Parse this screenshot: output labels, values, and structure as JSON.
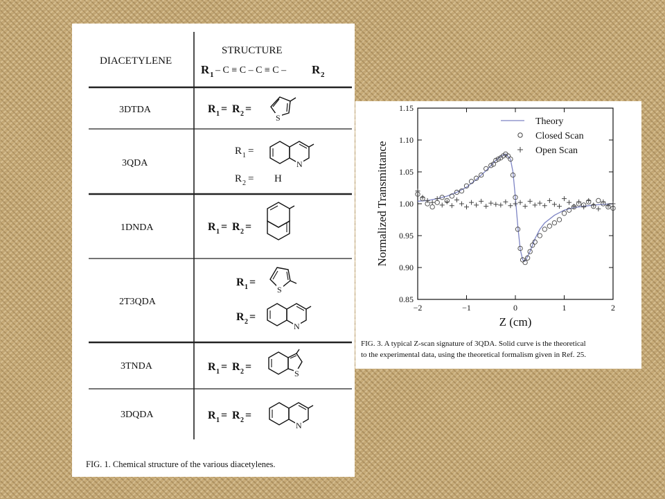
{
  "fig1": {
    "header_left": "DIACETYLENE",
    "header_right": "STRUCTURE",
    "formula": {
      "r1": "R",
      "r1_sub": "1",
      "mid": "– C ≡ C – C ≡ C –",
      "r2": "R",
      "r2_sub": "2"
    },
    "rows": [
      {
        "name": "3DTDA",
        "lines": [
          {
            "label": "R",
            "sub": "1",
            "eq": "= ",
            "label2": "R",
            "sub2": "2",
            "eq2": "=",
            "group": "thiophene-3-yl",
            "value": ""
          }
        ]
      },
      {
        "name": "3QDA",
        "lines": [
          {
            "label": "R",
            "sub": "1",
            "eq": "=",
            "group": "quinolin-3-yl",
            "value": ""
          },
          {
            "label": "R",
            "sub": "2",
            "eq": "=",
            "group": "",
            "value": "H"
          }
        ]
      },
      {
        "name": "1DNDA",
        "lines": [
          {
            "label": "R",
            "sub": "1",
            "eq": "= ",
            "label2": "R",
            "sub2": "2",
            "eq2": "=",
            "group": "naphthalen-1-yl",
            "value": ""
          }
        ]
      },
      {
        "name": "2T3QDA",
        "lines": [
          {
            "label": "R",
            "sub": "1",
            "eq": "=",
            "group": "thiophen-2-yl",
            "value": ""
          },
          {
            "label": "R",
            "sub": "2",
            "eq": "=",
            "group": "quinolin-3-yl",
            "value": ""
          }
        ]
      },
      {
        "name": "3TNDA",
        "lines": [
          {
            "label": "R",
            "sub": "1",
            "eq": "= ",
            "label2": "R",
            "sub2": "2",
            "eq2": "=",
            "group": "benzothiophen-3-yl",
            "value": ""
          }
        ]
      },
      {
        "name": "3DQDA",
        "lines": [
          {
            "label": "R",
            "sub": "1",
            "eq": "= ",
            "label2": "R",
            "sub2": "2",
            "eq2": "=",
            "group": "quinolin-3-yl",
            "value": ""
          }
        ]
      }
    ],
    "atoms": {
      "S": "S",
      "N": "N"
    },
    "caption": "FIG. 1. Chemical structure of the various diacetylenes."
  },
  "fig3": {
    "caption_line1": "FIG. 3. A typical Z-scan signature of 3QDA. Solid curve is the theoretical",
    "caption_line2": "to the experimental data, using the theoretical formalism given in Ref. 25."
  },
  "chart_data": {
    "type": "scatter",
    "title": "",
    "xlabel": "Z (cm)",
    "ylabel": "Normalized Transmittance",
    "xlim": [
      -2,
      2
    ],
    "ylim": [
      0.85,
      1.15
    ],
    "xticks": [
      -2,
      -1,
      0,
      1,
      2
    ],
    "xtick_labels": [
      "−2",
      "−1",
      "0",
      "1",
      "2"
    ],
    "yticks": [
      0.85,
      0.9,
      0.95,
      1.0,
      1.05,
      1.1,
      1.15
    ],
    "ytick_labels": [
      "0.85",
      "0.90",
      "0.95",
      "1.00",
      "1.05",
      "1.10",
      "1.15"
    ],
    "grid": false,
    "legend_position": "top-right",
    "series": [
      {
        "name": "Theory",
        "marker": "line",
        "color": "#7d84c4",
        "x": [
          -2.0,
          -1.8,
          -1.6,
          -1.4,
          -1.2,
          -1.0,
          -0.8,
          -0.6,
          -0.5,
          -0.4,
          -0.3,
          -0.2,
          -0.1,
          -0.05,
          0.0,
          0.05,
          0.1,
          0.15,
          0.2,
          0.3,
          0.4,
          0.5,
          0.6,
          0.8,
          1.0,
          1.2,
          1.4,
          1.6,
          1.8,
          2.0
        ],
        "y": [
          1.004,
          1.005,
          1.008,
          1.012,
          1.018,
          1.026,
          1.038,
          1.052,
          1.06,
          1.068,
          1.074,
          1.078,
          1.07,
          1.05,
          1.01,
          0.965,
          0.928,
          0.912,
          0.91,
          0.925,
          0.945,
          0.96,
          0.97,
          0.982,
          0.99,
          0.994,
          0.996,
          0.998,
          0.999,
          1.0
        ]
      },
      {
        "name": "Closed Scan",
        "marker": "circle",
        "color": "#444444",
        "x": [
          -2.0,
          -1.9,
          -1.8,
          -1.7,
          -1.6,
          -1.5,
          -1.4,
          -1.3,
          -1.2,
          -1.1,
          -1.0,
          -0.9,
          -0.8,
          -0.7,
          -0.6,
          -0.5,
          -0.45,
          -0.4,
          -0.35,
          -0.3,
          -0.25,
          -0.2,
          -0.15,
          -0.1,
          -0.05,
          0.0,
          0.05,
          0.1,
          0.15,
          0.2,
          0.25,
          0.3,
          0.35,
          0.4,
          0.5,
          0.6,
          0.7,
          0.8,
          0.9,
          1.0,
          1.1,
          1.2,
          1.3,
          1.4,
          1.5,
          1.6,
          1.7,
          1.8,
          1.9,
          2.0
        ],
        "y": [
          1.015,
          1.008,
          1.0,
          0.995,
          1.002,
          1.01,
          1.005,
          1.012,
          1.018,
          1.02,
          1.028,
          1.035,
          1.04,
          1.045,
          1.055,
          1.06,
          1.062,
          1.068,
          1.07,
          1.072,
          1.075,
          1.078,
          1.075,
          1.07,
          1.045,
          1.01,
          0.96,
          0.93,
          0.912,
          0.908,
          0.915,
          0.925,
          0.935,
          0.94,
          0.95,
          0.96,
          0.965,
          0.97,
          0.975,
          0.985,
          0.99,
          0.995,
          1.0,
          0.998,
          1.003,
          0.996,
          1.005,
          1.0,
          0.995,
          0.993
        ]
      },
      {
        "name": "Open Scan",
        "marker": "plus",
        "color": "#444444",
        "x": [
          -2.0,
          -1.9,
          -1.8,
          -1.7,
          -1.6,
          -1.5,
          -1.4,
          -1.3,
          -1.2,
          -1.1,
          -1.0,
          -0.9,
          -0.8,
          -0.7,
          -0.6,
          -0.5,
          -0.4,
          -0.3,
          -0.2,
          -0.1,
          0.0,
          0.1,
          0.2,
          0.3,
          0.4,
          0.5,
          0.6,
          0.7,
          0.8,
          0.9,
          1.0,
          1.1,
          1.2,
          1.3,
          1.4,
          1.5,
          1.6,
          1.7,
          1.8,
          1.9,
          2.0
        ],
        "y": [
          1.02,
          1.01,
          1.005,
          1.002,
          1.008,
          0.998,
          1.003,
          0.997,
          1.006,
          1.0,
          0.995,
          1.002,
          0.998,
          1.004,
          0.996,
          1.001,
          0.999,
          0.998,
          1.003,
          0.997,
          1.0,
          1.002,
          0.996,
          1.004,
          0.998,
          1.001,
          0.997,
          1.005,
          0.999,
          0.996,
          1.008,
          1.002,
          0.996,
          1.003,
          0.995,
          1.005,
          0.998,
          0.992,
          1.003,
          0.997,
          1.0
        ]
      }
    ]
  }
}
